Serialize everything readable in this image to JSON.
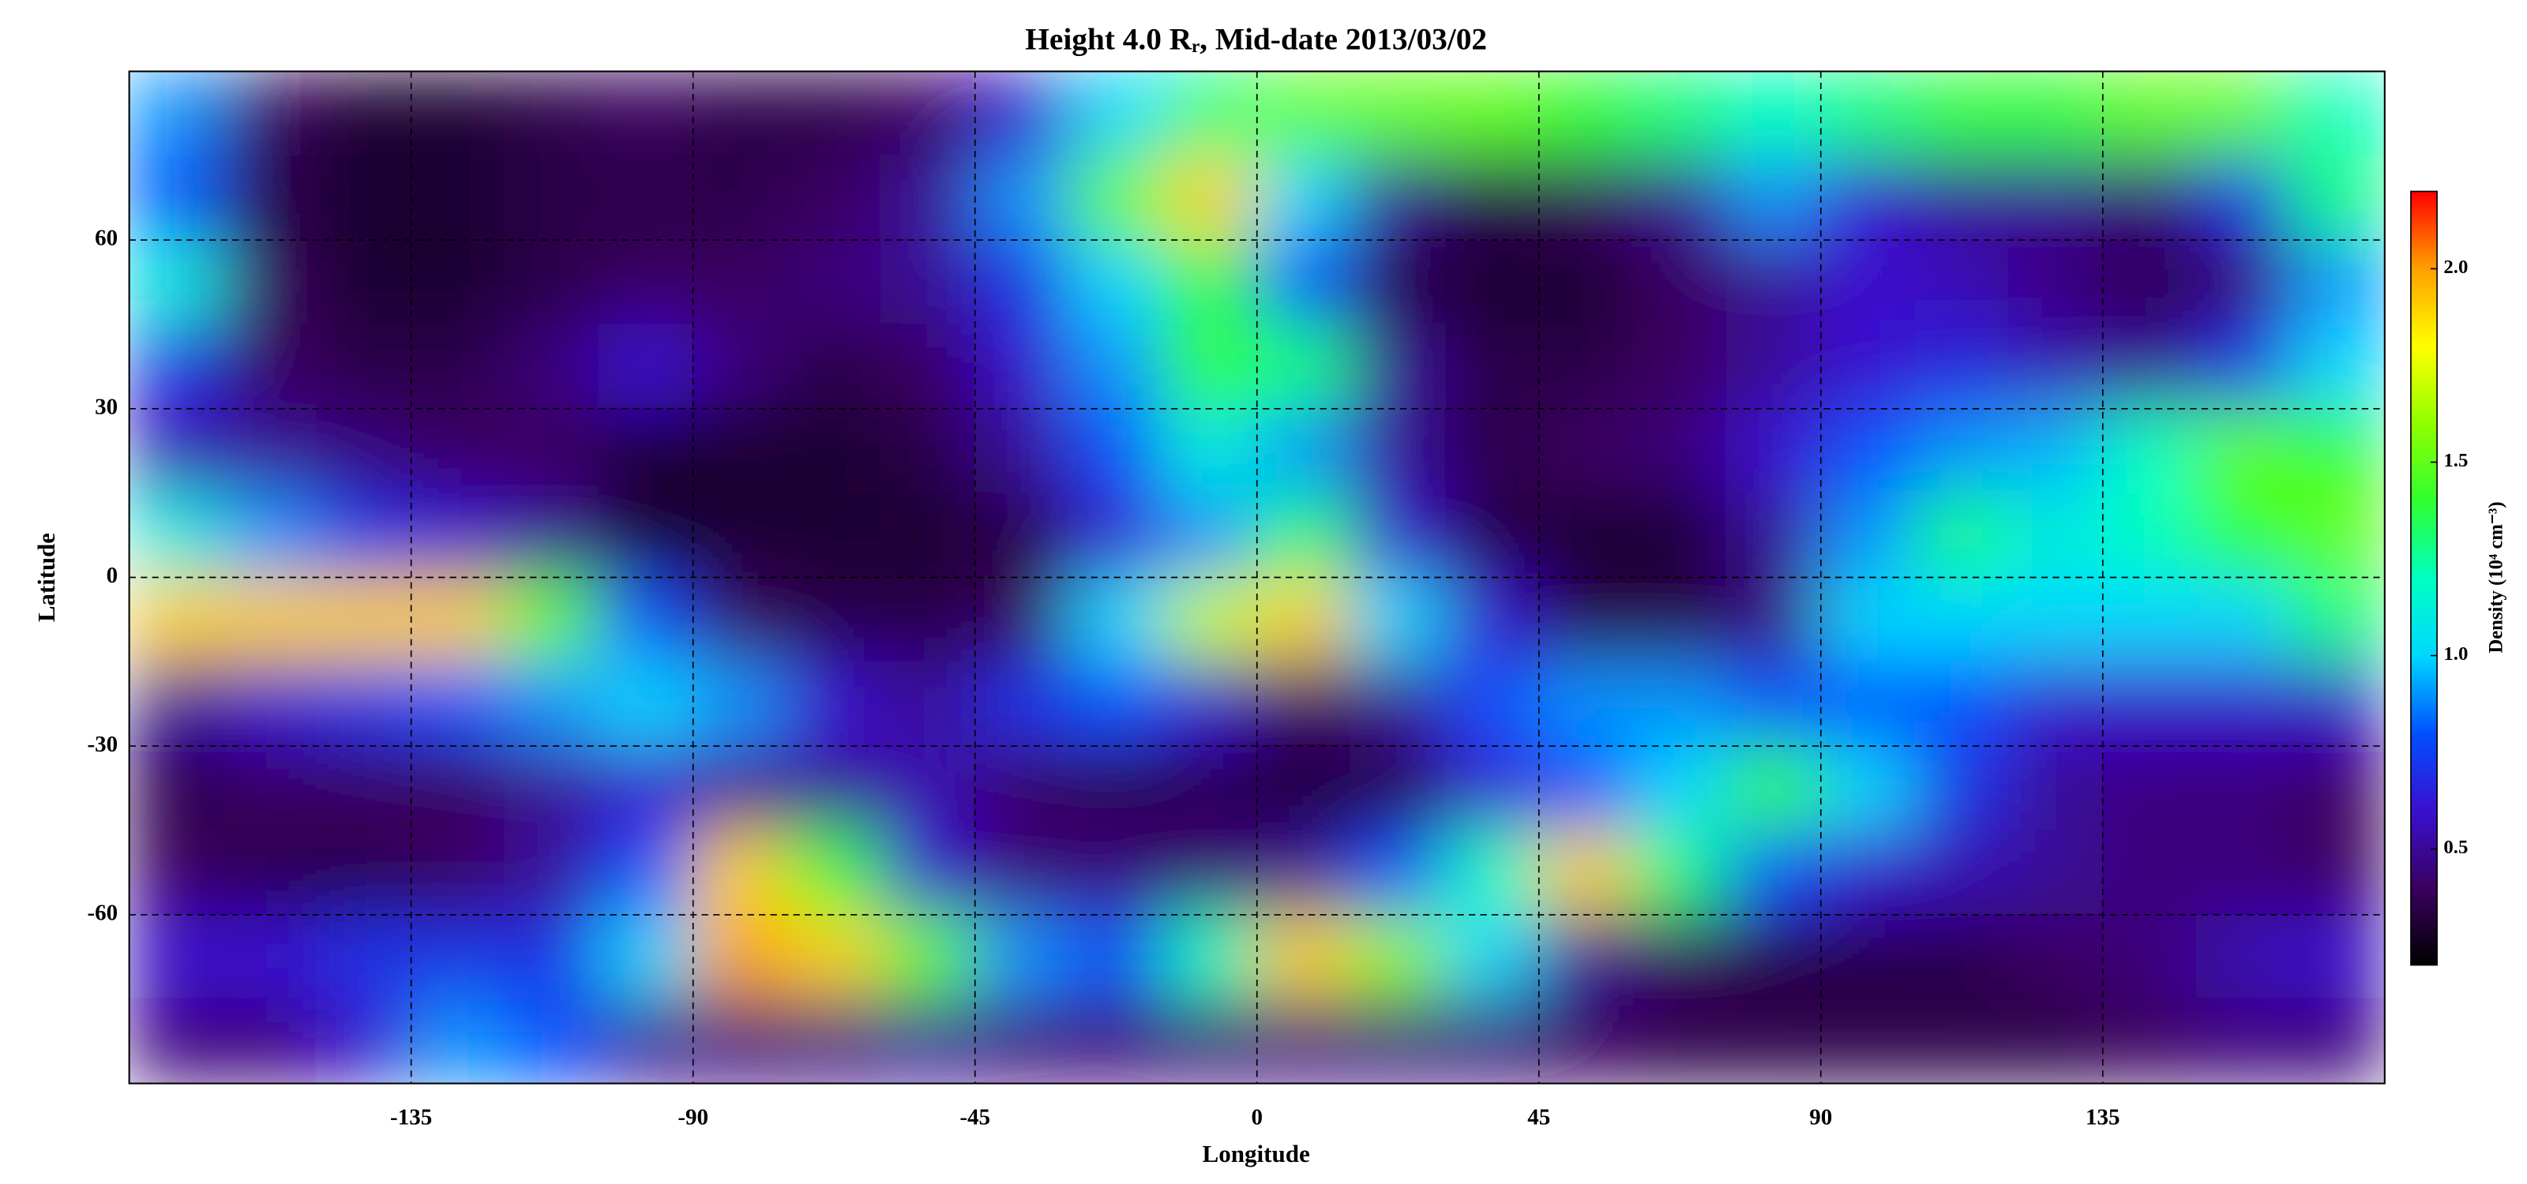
{
  "chart_data": {
    "type": "heatmap",
    "title": "Height 4.0 Rᵣ, Mid-date 2013/03/02",
    "x_label": "Longitude",
    "y_label": "Latitude",
    "colorbar_label": "Density (10⁴ cm⁻³)",
    "xlim": [
      -180,
      180
    ],
    "ylim": [
      -90,
      90
    ],
    "xticks": [
      -135,
      -90,
      -45,
      0,
      45,
      90,
      135
    ],
    "yticks": [
      -60,
      -30,
      0,
      30,
      60
    ],
    "grid": true,
    "clim": [
      0.2,
      2.2
    ],
    "cticks": [
      0.5,
      {
        "value": 1,
        "label": "1.0"
      },
      1.5,
      {
        "value": 2,
        "label": "2.0"
      }
    ],
    "colormap": [
      "#000000",
      "#3a0060",
      "#3a10d0",
      "#0050ff",
      "#00d8ff",
      "#00ffc0",
      "#30ff30",
      "#90ff00",
      "#ffff00",
      "#ffa000",
      "#ff0000"
    ],
    "x": [
      -172.5,
      -157.5,
      -142.5,
      -127.5,
      -112.5,
      -97.5,
      -82.5,
      -67.5,
      -52.5,
      -37.5,
      -22.5,
      -7.5,
      7.5,
      22.5,
      37.5,
      52.5,
      67.5,
      82.5,
      97.5,
      112.5,
      127.5,
      142.5,
      157.5,
      172.5
    ],
    "y": [
      82.5,
      67.5,
      52.5,
      37.5,
      22.5,
      7.5,
      -7.5,
      -22.5,
      -37.5,
      -52.5,
      -67.5,
      -82.5
    ],
    "z": [
      [
        0.9,
        0.4,
        0.3,
        0.3,
        0.35,
        0.4,
        0.35,
        0.35,
        0.4,
        0.6,
        1.0,
        1.3,
        1.5,
        1.5,
        1.5,
        1.4,
        1.3,
        1.2,
        1.3,
        1.4,
        1.4,
        1.5,
        1.5,
        1.2
      ],
      [
        0.8,
        0.35,
        0.3,
        0.3,
        0.35,
        0.35,
        0.35,
        0.4,
        0.5,
        0.9,
        1.5,
        1.9,
        1.0,
        0.5,
        0.35,
        0.4,
        0.5,
        0.9,
        0.6,
        0.5,
        0.5,
        0.45,
        0.7,
        1.3
      ],
      [
        1.1,
        0.4,
        0.3,
        0.3,
        0.35,
        0.4,
        0.4,
        0.45,
        0.5,
        0.7,
        1.0,
        1.4,
        0.8,
        0.35,
        0.3,
        0.3,
        0.4,
        0.5,
        0.6,
        0.55,
        0.45,
        0.35,
        0.45,
        0.9
      ],
      [
        0.7,
        0.4,
        0.35,
        0.35,
        0.45,
        0.6,
        0.45,
        0.35,
        0.4,
        0.6,
        0.9,
        1.4,
        1.3,
        0.5,
        0.35,
        0.35,
        0.4,
        0.5,
        0.6,
        0.65,
        0.55,
        0.5,
        0.7,
        1.0
      ],
      [
        0.55,
        0.5,
        0.45,
        0.4,
        0.4,
        0.3,
        0.3,
        0.3,
        0.35,
        0.5,
        0.8,
        1.1,
        0.9,
        0.5,
        0.35,
        0.4,
        0.45,
        0.6,
        0.8,
        0.9,
        0.95,
        1.2,
        1.5,
        1.4
      ],
      [
        1.1,
        0.9,
        0.7,
        0.6,
        0.5,
        0.3,
        0.3,
        0.3,
        0.3,
        0.35,
        0.6,
        0.9,
        1.3,
        0.6,
        0.35,
        0.3,
        0.3,
        0.5,
        0.9,
        1.3,
        1.1,
        1.2,
        1.4,
        1.5
      ],
      [
        1.9,
        1.9,
        1.9,
        1.9,
        1.5,
        0.8,
        0.4,
        0.35,
        0.35,
        0.4,
        1.0,
        1.7,
        1.9,
        1.0,
        0.6,
        0.35,
        0.35,
        0.45,
        1.0,
        1.0,
        1.0,
        1.0,
        1.0,
        1.3
      ],
      [
        0.5,
        0.6,
        0.7,
        0.8,
        0.9,
        1.0,
        0.9,
        0.6,
        0.5,
        0.7,
        0.8,
        0.6,
        0.4,
        0.5,
        0.8,
        0.9,
        0.9,
        0.8,
        0.8,
        0.8,
        0.6,
        0.6,
        0.6,
        0.6
      ],
      [
        0.35,
        0.4,
        0.4,
        0.4,
        0.5,
        0.6,
        0.5,
        0.5,
        0.55,
        0.4,
        0.35,
        0.35,
        0.3,
        0.35,
        0.6,
        0.8,
        1.0,
        1.4,
        1.0,
        0.7,
        0.5,
        0.45,
        0.45,
        0.4
      ],
      [
        0.4,
        0.35,
        0.35,
        0.4,
        0.5,
        0.8,
        1.9,
        1.4,
        0.6,
        0.45,
        0.45,
        0.45,
        0.5,
        0.8,
        1.2,
        1.9,
        1.3,
        0.8,
        0.6,
        0.55,
        0.5,
        0.45,
        0.45,
        0.4
      ],
      [
        0.6,
        0.6,
        0.7,
        0.7,
        0.7,
        1.0,
        2.0,
        1.9,
        1.5,
        0.9,
        0.8,
        1.2,
        1.9,
        1.6,
        1.0,
        0.5,
        0.4,
        0.35,
        0.35,
        0.35,
        0.4,
        0.45,
        0.55,
        0.6
      ],
      [
        0.45,
        0.45,
        0.6,
        0.9,
        0.8,
        0.5,
        0.45,
        0.45,
        0.5,
        0.45,
        0.45,
        0.45,
        0.45,
        0.45,
        0.45,
        0.4,
        0.35,
        0.35,
        0.35,
        0.35,
        0.35,
        0.4,
        0.45,
        0.45
      ]
    ]
  }
}
